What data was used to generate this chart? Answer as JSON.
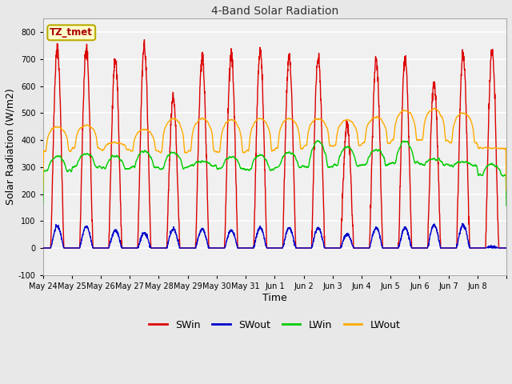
{
  "title": "4-Band Solar Radiation",
  "xlabel": "Time",
  "ylabel": "Solar Radiation (W/m2)",
  "ylim": [
    -100,
    850
  ],
  "yticks": [
    -100,
    0,
    100,
    200,
    300,
    400,
    500,
    600,
    700,
    800
  ],
  "annotation_text": "TZ_tmet",
  "annotation_color": "#aa0000",
  "annotation_bg": "#ffffcc",
  "annotation_border": "#bbaa00",
  "fig_bg": "#e8e8e8",
  "plot_bg": "#f0f0f0",
  "grid_color": "#dddddd",
  "colors": {
    "SWin": "#dd0000",
    "SWout": "#0000cc",
    "LWin": "#00cc00",
    "LWout": "#ffaa00"
  },
  "n_days": 16,
  "day_labels": [
    "May 24",
    "May 25",
    "May 26",
    "May 27",
    "May 28",
    "May 29",
    "May 30",
    "May 31",
    "Jun 1",
    "Jun 2",
    "Jun 3",
    "Jun 4",
    "Jun 5",
    "Jun 6",
    "Jun 7",
    "Jun 8"
  ],
  "SWin_peaks": [
    740,
    740,
    695,
    750,
    560,
    710,
    715,
    730,
    710,
    710,
    460,
    700,
    700,
    610,
    720,
    730
  ],
  "SWout_peaks": [
    80,
    80,
    65,
    55,
    70,
    70,
    65,
    75,
    75,
    75,
    50,
    75,
    75,
    85,
    85,
    5
  ],
  "LWin_base": [
    285,
    300,
    295,
    300,
    295,
    305,
    295,
    290,
    300,
    300,
    305,
    310,
    315,
    310,
    305,
    270
  ],
  "LWin_day": [
    340,
    350,
    340,
    360,
    355,
    320,
    340,
    345,
    355,
    395,
    375,
    365,
    395,
    330,
    320,
    310
  ],
  "LWout_base": [
    360,
    370,
    365,
    360,
    355,
    360,
    355,
    360,
    370,
    380,
    380,
    390,
    400,
    400,
    390,
    370
  ],
  "LWout_day": [
    450,
    455,
    390,
    440,
    480,
    480,
    475,
    480,
    480,
    480,
    475,
    485,
    510,
    515,
    500,
    370
  ]
}
